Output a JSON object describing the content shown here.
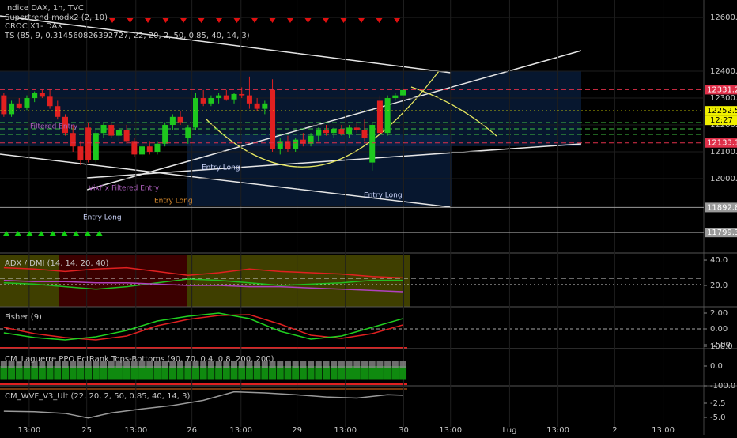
{
  "chart_data": [
    {
      "type": "candlestick",
      "title": "Indice DAX, 1h, TVC",
      "indicators": [
        "Supertrend modx2 (2, 10)",
        "CROC X1- DAX",
        "TS (85, 9, 0.314560826392727, 22, 20, 2, 50, 0.85, 40, 14, 3)"
      ],
      "x": [
        0,
        1,
        2,
        3,
        4,
        5,
        6,
        7,
        8,
        9,
        10,
        11,
        12,
        13,
        14,
        15,
        16,
        17,
        18,
        19,
        20,
        21,
        22,
        23,
        24,
        25,
        26,
        27,
        28,
        29,
        30,
        31,
        32,
        33,
        34,
        35,
        36,
        37,
        38,
        39,
        40,
        41,
        42,
        43,
        44,
        45,
        46,
        47,
        48,
        49,
        50,
        51,
        52
      ],
      "open": [
        12310,
        12240,
        12280,
        12265,
        12300,
        12320,
        12305,
        12270,
        12230,
        12170,
        12120,
        12190,
        12070,
        12170,
        12200,
        12160,
        12180,
        12140,
        12090,
        12120,
        12100,
        12130,
        12200,
        12230,
        12150,
        12190,
        12300,
        12280,
        12300,
        12310,
        12295,
        12315,
        12310,
        12280,
        12260,
        12330,
        12110,
        12140,
        12110,
        12145,
        12130,
        12160,
        12180,
        12170,
        12185,
        12165,
        12190,
        12180,
        12060,
        12290,
        12170,
        12300,
        12310
      ],
      "high": [
        12320,
        12290,
        12300,
        12310,
        12325,
        12330,
        12335,
        12290,
        12240,
        12200,
        12140,
        12210,
        12180,
        12210,
        12210,
        12190,
        12200,
        12150,
        12130,
        12140,
        12140,
        12210,
        12240,
        12250,
        12200,
        12320,
        12330,
        12310,
        12320,
        12330,
        12320,
        12340,
        12380,
        12300,
        12290,
        12370,
        12150,
        12160,
        12150,
        12170,
        12170,
        12190,
        12200,
        12190,
        12200,
        12200,
        12210,
        12220,
        12210,
        12310,
        12310,
        12320,
        12340
      ],
      "low": [
        12230,
        12230,
        12260,
        12255,
        12285,
        12300,
        12260,
        12220,
        12160,
        12100,
        12050,
        12060,
        12060,
        12150,
        12150,
        12140,
        12130,
        12080,
        12080,
        12090,
        12090,
        12120,
        12180,
        12200,
        12130,
        12180,
        12270,
        12270,
        12280,
        12290,
        12280,
        12300,
        12260,
        12250,
        12240,
        12100,
        12090,
        12100,
        12100,
        12120,
        12120,
        12140,
        12160,
        12150,
        12160,
        12150,
        12170,
        12140,
        12030,
        12150,
        12160,
        12290,
        12300
      ],
      "close": [
        12240,
        12280,
        12265,
        12300,
        12320,
        12305,
        12270,
        12230,
        12170,
        12120,
        12070,
        12070,
        12170,
        12200,
        12160,
        12180,
        12140,
        12090,
        12120,
        12100,
        12130,
        12200,
        12230,
        12210,
        12190,
        12300,
        12280,
        12300,
        12310,
        12295,
        12315,
        12310,
        12280,
        12260,
        12280,
        12110,
        12140,
        12110,
        12145,
        12130,
        12160,
        12180,
        12170,
        12185,
        12165,
        12190,
        12180,
        12150,
        12200,
        12170,
        12300,
        12310,
        12330
      ],
      "up_color": "#1ec81e",
      "down_color": "#e02020",
      "xlim": [
        -0.5,
        91.2
      ],
      "xticks": [
        {
          "value": 3.3,
          "label": "13:00"
        },
        {
          "value": 10.8,
          "label": "25"
        },
        {
          "value": 17.2,
          "label": "13:00"
        },
        {
          "value": 24.5,
          "label": "26"
        },
        {
          "value": 30.9,
          "label": "13:00"
        },
        {
          "value": 38.2,
          "label": "29"
        },
        {
          "value": 44.5,
          "label": "13:00"
        },
        {
          "value": 52.1,
          "label": "30"
        },
        {
          "value": 58.2,
          "label": "13:00"
        },
        {
          "value": 65.9,
          "label": "Lug"
        },
        {
          "value": 72.2,
          "label": "13:00"
        },
        {
          "value": 79.6,
          "label": "2"
        },
        {
          "value": 85.9,
          "label": "13:00"
        }
      ],
      "ylim": [
        11738,
        12665
      ],
      "yticks": [
        {
          "value": 12000,
          "label": "12000.0"
        },
        {
          "value": 12100,
          "label": "12100.0"
        },
        {
          "value": 12200,
          "label": "12200.0"
        },
        {
          "value": 12300,
          "label": "12300.0"
        },
        {
          "value": 12400,
          "label": "12400.0"
        },
        {
          "value": 12600,
          "label": "12600.0"
        }
      ],
      "levels": [
        12331.2,
        12252.5,
        12133.1,
        11892.8,
        11799.3
      ],
      "level_colors": [
        "#e0304a",
        "#f0f000",
        "#e0304a",
        "#9a9a9a",
        "#9a9a9a"
      ],
      "countdown": "12:27",
      "annotations": [
        "Filtered Entry",
        "VixFix Filtered Entry",
        "Entry Long",
        "Entry Long",
        "Entry Long",
        "Entry Long"
      ]
    },
    {
      "type": "line",
      "title": "ADX / DMI (14, 14, 20, 40)",
      "x": [
        0,
        4,
        8,
        12,
        16,
        20,
        24,
        28,
        32,
        36,
        40,
        44,
        48,
        52
      ],
      "series": [
        {
          "color": "#e02020",
          "values": [
            34,
            33,
            31,
            33,
            34,
            31,
            28,
            30,
            33,
            31,
            30,
            29,
            27,
            26
          ]
        },
        {
          "color": "#20c020",
          "values": [
            22,
            21,
            19,
            17,
            19,
            22,
            25,
            24,
            22,
            20,
            21,
            22,
            24,
            24
          ]
        },
        {
          "color": "#b040c0",
          "values": [
            24,
            23,
            23,
            22,
            22,
            21,
            20,
            20,
            19,
            19,
            18,
            17,
            16,
            15
          ]
        }
      ],
      "ylim": [
        3.1,
        44.4
      ],
      "yticks": [
        {
          "value": 40,
          "label": "40.0"
        },
        {
          "value": 20,
          "label": "20.0"
        }
      ]
    },
    {
      "type": "line",
      "title": "Fisher (9)",
      "x": [
        0,
        4,
        8,
        12,
        16,
        20,
        24,
        28,
        32,
        36,
        40,
        44,
        48,
        52
      ],
      "series": [
        {
          "color": "#e02020",
          "values": [
            0.2,
            -0.6,
            -1.1,
            -1.4,
            -0.9,
            0.4,
            1.2,
            1.7,
            1.8,
            0.6,
            -0.8,
            -1.2,
            -0.6,
            0.5
          ]
        },
        {
          "color": "#20d020",
          "values": [
            -0.5,
            -1.1,
            -1.4,
            -1.0,
            -0.2,
            1.0,
            1.6,
            2.0,
            1.3,
            -0.3,
            -1.3,
            -0.9,
            0.2,
            1.3
          ]
        }
      ],
      "ylim": [
        -2.4,
        2.6
      ],
      "yticks": [
        {
          "value": 2,
          "label": "2.00"
        },
        {
          "value": 0,
          "label": "0.00"
        },
        {
          "value": -2,
          "label": "-2.00"
        }
      ]
    },
    {
      "type": "bar",
      "title": "CM_Laguerre PPO PctRank Tops-Bottoms (90, 70, 0.4, 0.8, 200, 200)",
      "x": [
        0,
        1,
        2,
        3,
        4,
        5,
        6,
        7,
        8,
        9,
        10,
        11,
        12,
        13,
        14,
        15,
        16,
        17,
        18,
        19,
        20,
        21,
        22,
        23,
        24,
        25,
        26,
        27,
        28,
        29,
        30,
        31,
        32,
        33,
        34,
        35,
        36,
        37,
        38,
        39,
        40,
        41,
        42,
        43,
        44,
        45,
        46,
        47,
        48,
        49,
        50,
        51,
        52
      ],
      "values": [
        -70,
        -70,
        -70,
        -70,
        -70,
        -70,
        -70,
        -70,
        -70,
        -70,
        -70,
        -70,
        -70,
        -70,
        -70,
        -70,
        -70,
        -70,
        -70,
        -70,
        -70,
        -70,
        -70,
        -70,
        -70,
        -70,
        -70,
        -70,
        -70,
        -70,
        -70,
        -70,
        -70,
        -70,
        -70,
        -70,
        -70,
        -70,
        -70,
        -70,
        -70,
        -70,
        -70,
        -70,
        -70,
        -70,
        -70,
        -70,
        -70,
        -70,
        -70,
        -70,
        -70
      ],
      "color": "#0f8a0f",
      "ylim": [
        -96,
        80
      ],
      "yticks": [
        {
          "value": 100,
          "label": "100.0"
        },
        {
          "value": 0,
          "label": "0.0"
        },
        {
          "value": -100,
          "label": "-100.0"
        }
      ]
    },
    {
      "type": "line",
      "title": "CM_WVF_V3_Ult (22, 20, 2, 50, 0.85, 40, 14, 3)",
      "x": [
        0,
        4,
        8,
        11,
        14,
        18,
        22,
        26,
        30,
        34,
        38,
        42,
        46,
        50,
        52
      ],
      "series": [
        {
          "color": "#9a9a9a",
          "values": [
            -3.9,
            -4.0,
            -4.3,
            -5.1,
            -4.2,
            -3.5,
            -2.9,
            -2.0,
            -0.5,
            -0.7,
            -1.0,
            -1.4,
            -1.6,
            -1.0,
            -1.1
          ]
        }
      ],
      "ylim": [
        -6.67,
        0.28
      ],
      "yticks": [
        -2.5,
        {
          "value": -5,
          "label": "-5.0"
        }
      ]
    }
  ]
}
